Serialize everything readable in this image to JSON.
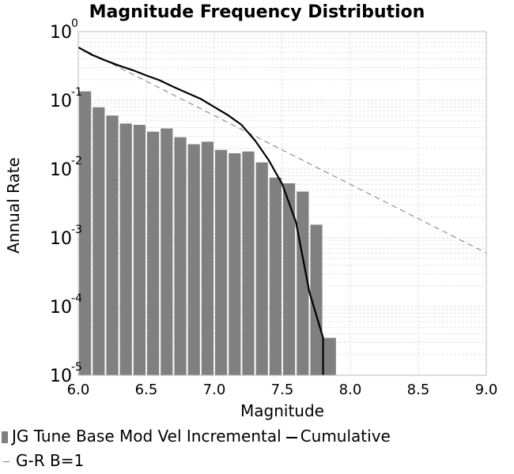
{
  "chart_data": {
    "type": "bar",
    "title": "Magnitude Frequency Distribution",
    "xlabel": "Magnitude",
    "ylabel": "Annual Rate",
    "xlim": [
      6.0,
      9.0
    ],
    "ylim": [
      1e-05,
      1
    ],
    "yscale": "log",
    "grid": true,
    "legend_position": "bottom",
    "x_ticks": [
      "6.0",
      "6.5",
      "7.0",
      "7.5",
      "8.0",
      "8.5",
      "9.0"
    ],
    "y_ticks": [
      {
        "base": "10",
        "exp": "0",
        "value": 1
      },
      {
        "base": "10",
        "exp": "-1",
        "value": 0.1
      },
      {
        "base": "10",
        "exp": "-2",
        "value": 0.01
      },
      {
        "base": "10",
        "exp": "-3",
        "value": 0.001
      },
      {
        "base": "10",
        "exp": "-4",
        "value": 0.0001
      },
      {
        "base": "10",
        "exp": "-5",
        "value": 1e-05
      }
    ],
    "series": [
      {
        "name": "JG Tune Base Mod Vel Incremental",
        "kind": "bar",
        "color": "#808080",
        "x": [
          6.05,
          6.15,
          6.25,
          6.35,
          6.45,
          6.55,
          6.65,
          6.75,
          6.85,
          6.95,
          7.05,
          7.15,
          7.25,
          7.35,
          7.45,
          7.55,
          7.65,
          7.75,
          7.85
        ],
        "values": [
          0.135,
          0.079,
          0.06,
          0.046,
          0.044,
          0.035,
          0.039,
          0.029,
          0.023,
          0.025,
          0.019,
          0.017,
          0.018,
          0.0125,
          0.0075,
          0.0062,
          0.0047,
          0.00155,
          3.5e-05
        ]
      },
      {
        "name": "Cumulative",
        "kind": "line",
        "color": "#000000",
        "x": [
          6.0,
          6.1,
          6.2,
          6.3,
          6.4,
          6.5,
          6.6,
          6.7,
          6.8,
          6.9,
          7.0,
          7.1,
          7.2,
          7.3,
          7.4,
          7.5,
          7.6,
          7.7,
          7.8,
          7.8
        ],
        "values": [
          0.59,
          0.46,
          0.38,
          0.32,
          0.275,
          0.23,
          0.195,
          0.157,
          0.128,
          0.105,
          0.08,
          0.061,
          0.044,
          0.026,
          0.0135,
          0.006,
          0.0017,
          0.00016,
          3.5e-05,
          1e-05
        ]
      },
      {
        "name": "G-R B=1",
        "kind": "dashed-line",
        "color": "#808080",
        "x": [
          6.0,
          9.0
        ],
        "values": [
          0.6,
          0.0006
        ]
      }
    ]
  }
}
